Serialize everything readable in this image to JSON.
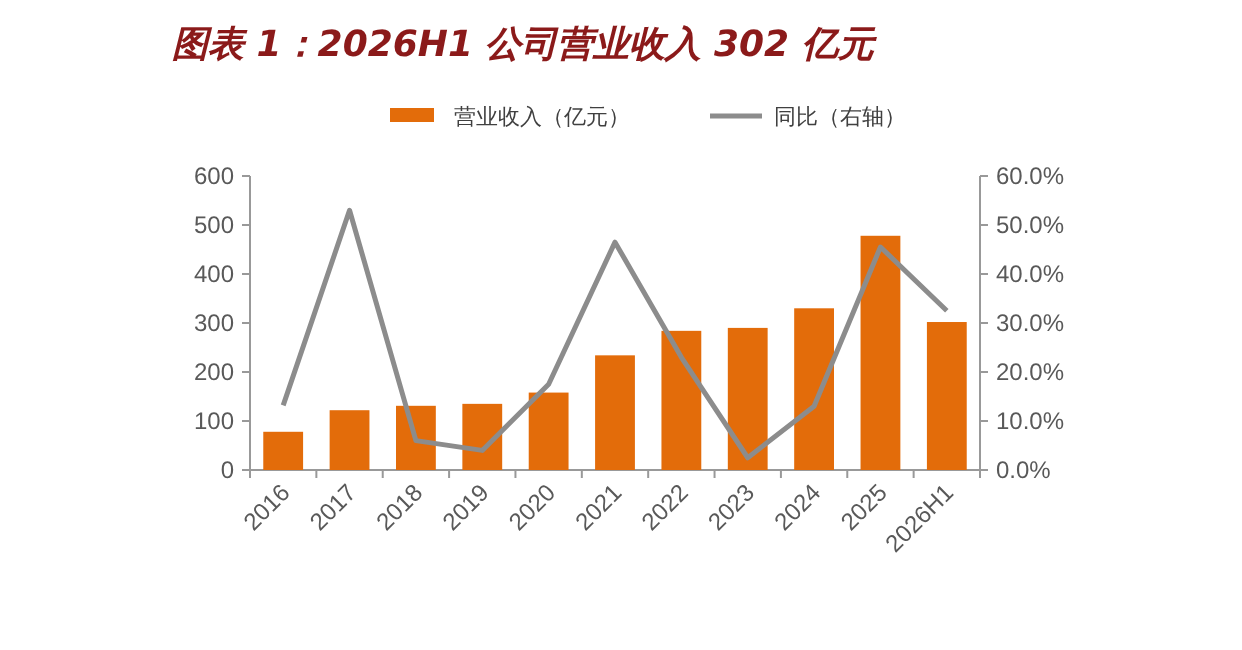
{
  "chart_data": {
    "type": "bar",
    "title": "图表 1：2026H1 公司营业收入 302 亿元",
    "categories": [
      "2016",
      "2017",
      "2018",
      "2019",
      "2020",
      "2021",
      "2022",
      "2023",
      "2024",
      "2025",
      "2026H1"
    ],
    "series": [
      {
        "name": "营业收入（亿元）",
        "color": "#e36c0a",
        "values": [
          78,
          122,
          131,
          135,
          158,
          234,
          284,
          290,
          330,
          478,
          302
        ]
      },
      {
        "name": "同比（右轴）",
        "type": "line",
        "axis": "y2",
        "color": "#8c8c8c",
        "values": [
          13.2,
          53,
          6,
          4,
          17.5,
          46.5,
          23,
          2.5,
          13,
          45.5,
          32.5
        ]
      }
    ],
    "ylim": [
      0,
      600
    ],
    "yticks": [
      0,
      100,
      200,
      300,
      400,
      500,
      600
    ],
    "y2lim": [
      0,
      60
    ],
    "y2ticks": [
      {
        "value": 0,
        "label": "0.0%"
      },
      {
        "value": 10,
        "label": "10.0%"
      },
      {
        "value": 20,
        "label": "20.0%"
      },
      {
        "value": 30,
        "label": "30.0%"
      },
      {
        "value": 40,
        "label": "40.0%"
      },
      {
        "value": 50,
        "label": "50.0%"
      },
      {
        "value": 60,
        "label": "60.0%"
      }
    ],
    "legend": "top",
    "grid": false
  }
}
